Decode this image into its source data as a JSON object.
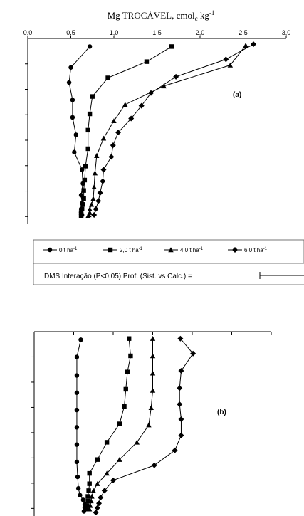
{
  "header": {
    "title_main": "Mg TROCÁVEL, cmol",
    "title_sub": "c",
    "title_unit": " kg",
    "title_sup": "-1"
  },
  "legend": {
    "entries": [
      {
        "label": "0 t ha",
        "sup": "-1",
        "marker": "circle"
      },
      {
        "label": "2,0 t ha",
        "sup": "-1",
        "marker": "square"
      },
      {
        "label": "4,0 t ha",
        "sup": "-1",
        "marker": "triangle"
      },
      {
        "label": "6,0 t ha",
        "sup": "-1",
        "marker": "diamond"
      }
    ],
    "dms_text": "DMS Interação (P<0,05) Prof. (Sist. vs Calc.) ="
  },
  "chart_data": [
    {
      "type": "line",
      "panel": "(a)",
      "x_tick_labels": [
        "0,0",
        "0,5",
        "1,0",
        "1,5",
        "2,0",
        "2,5",
        "3,0"
      ],
      "xlim": [
        0,
        3
      ],
      "ylim": [
        0,
        16
      ],
      "y_tick_count": 7,
      "y_orientation": "depth-down",
      "series": [
        {
          "name": "0 t ha-1",
          "marker": "circle",
          "x": [
            0.72,
            0.5,
            0.48,
            0.52,
            0.52,
            0.56,
            0.54,
            0.63,
            0.64,
            0.62,
            0.63,
            0.62,
            0.62,
            0.63,
            0.62
          ],
          "y": [
            0.7,
            2.5,
            3.8,
            5.3,
            6.8,
            8.3,
            9.8,
            11.3,
            12.5,
            13.5,
            14.2,
            14.7,
            15.0,
            15.2,
            15.3
          ]
        },
        {
          "name": "2,0 t ha-1",
          "marker": "square",
          "x": [
            1.67,
            1.38,
            0.93,
            0.75,
            0.72,
            0.7,
            0.7,
            0.67,
            0.66,
            0.65,
            0.65,
            0.64,
            0.63,
            0.62,
            0.62
          ],
          "y": [
            0.7,
            2.0,
            3.4,
            5.0,
            6.5,
            7.9,
            9.5,
            11.0,
            12.2,
            13.1,
            13.8,
            14.3,
            14.7,
            15.0,
            15.3
          ]
        },
        {
          "name": "4,0 t ha-1",
          "marker": "triangle",
          "x": [
            2.53,
            2.35,
            1.58,
            1.13,
            1.0,
            0.88,
            0.8,
            0.78,
            0.77,
            0.76,
            0.74,
            0.72,
            0.72,
            0.71,
            0.7
          ],
          "y": [
            0.6,
            2.3,
            4.1,
            5.7,
            7.1,
            8.6,
            10.1,
            11.6,
            12.8,
            13.8,
            14.3,
            14.7,
            15.0,
            15.2,
            15.3
          ]
        },
        {
          "name": "6,0 t ha-1",
          "marker": "diamond",
          "x": [
            2.62,
            2.3,
            1.72,
            1.43,
            1.32,
            1.2,
            1.05,
            0.99,
            0.97,
            0.88,
            0.87,
            0.84,
            0.82,
            0.79,
            0.77
          ],
          "y": [
            0.5,
            1.8,
            3.3,
            4.7,
            5.8,
            6.9,
            8.1,
            9.2,
            10.2,
            11.3,
            12.3,
            13.3,
            14.0,
            14.7,
            15.2
          ]
        }
      ]
    },
    {
      "type": "line",
      "panel": "(b)",
      "xlim": [
        0,
        3
      ],
      "ylim": [
        0,
        16
      ],
      "y_tick_count": 7,
      "y_orientation": "depth-down",
      "series": [
        {
          "name": "0 t ha-1",
          "marker": "circle",
          "x": [
            0.59,
            0.54,
            0.54,
            0.54,
            0.54,
            0.54,
            0.54,
            0.54,
            0.55,
            0.56,
            0.58,
            0.62,
            0.64,
            0.64,
            0.63
          ],
          "y": [
            0.7,
            2.2,
            3.8,
            5.3,
            6.8,
            8.3,
            9.8,
            11.3,
            12.6,
            13.6,
            14.2,
            14.6,
            15.0,
            15.3,
            15.6
          ]
        },
        {
          "name": "2,0 t ha-1",
          "marker": "square",
          "x": [
            1.2,
            1.22,
            1.18,
            1.16,
            1.14,
            1.08,
            0.92,
            0.8,
            0.7,
            0.7,
            0.69,
            0.68,
            0.68,
            0.67,
            0.66
          ],
          "y": [
            0.6,
            2.1,
            3.5,
            5.0,
            6.5,
            8.0,
            9.6,
            11.1,
            12.3,
            13.2,
            13.8,
            14.3,
            14.7,
            15.1,
            15.4
          ]
        },
        {
          "name": "4,0 t ha-1",
          "marker": "triangle",
          "x": [
            1.5,
            1.5,
            1.5,
            1.5,
            1.48,
            1.45,
            1.3,
            1.08,
            0.92,
            0.8,
            0.75,
            0.73,
            0.72,
            0.71,
            0.7
          ],
          "y": [
            0.6,
            2.1,
            3.6,
            5.1,
            6.6,
            8.1,
            9.6,
            11.1,
            12.3,
            13.2,
            13.8,
            14.3,
            14.7,
            15.1,
            15.4
          ]
        },
        {
          "name": "6,0 t ha-1",
          "marker": "diamond",
          "x": [
            1.85,
            2.01,
            1.86,
            1.84,
            1.84,
            1.86,
            1.86,
            1.78,
            1.52,
            1.0,
            0.89,
            0.84,
            0.82,
            0.8,
            0.78
          ],
          "y": [
            0.6,
            1.9,
            3.4,
            4.9,
            6.3,
            7.6,
            9.0,
            10.3,
            11.6,
            12.9,
            13.8,
            14.4,
            14.9,
            15.3,
            15.7
          ]
        }
      ]
    }
  ]
}
